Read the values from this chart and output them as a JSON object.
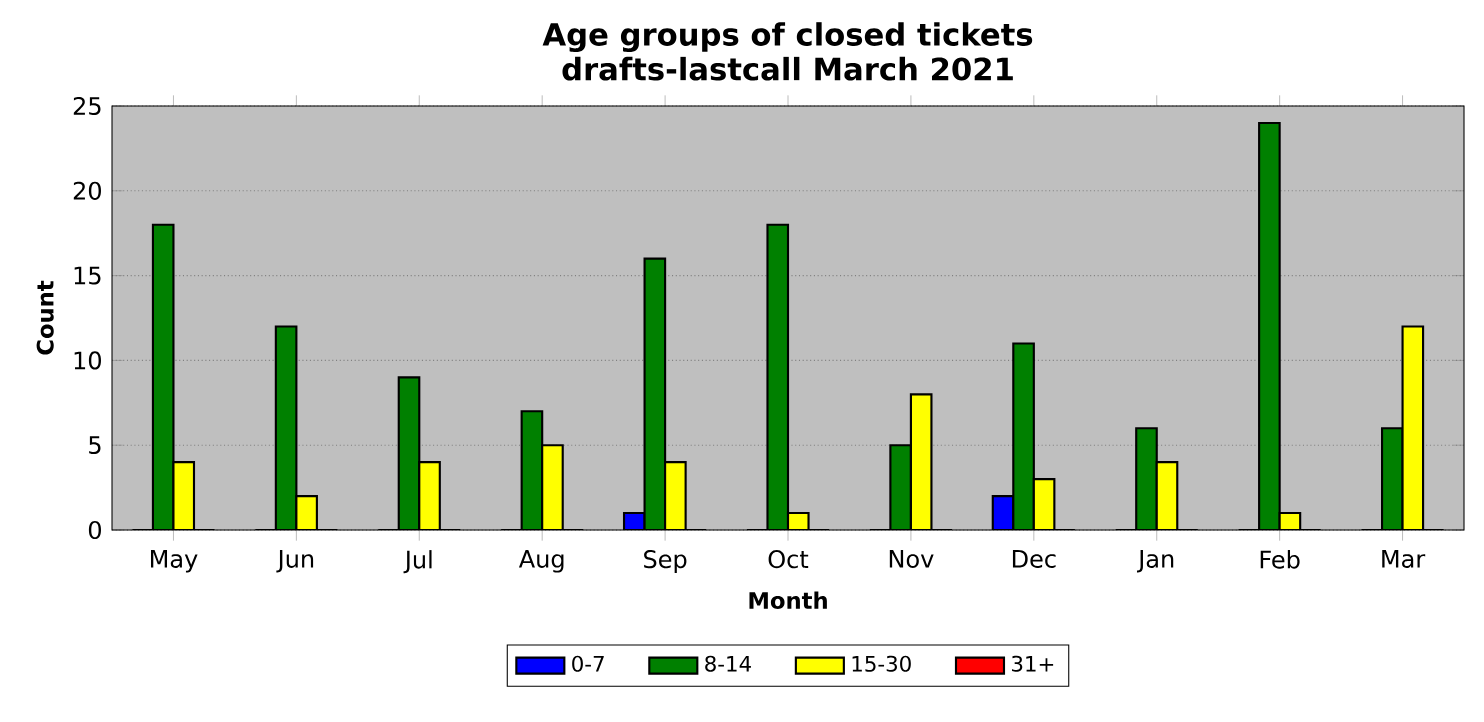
{
  "chart_data": {
    "type": "bar",
    "title": "Age groups of closed tickets\ndrafts-lastcall March 2021",
    "xlabel": "Month",
    "ylabel": "Count",
    "categories": [
      "May",
      "Jun",
      "Jul",
      "Aug",
      "Sep",
      "Oct",
      "Nov",
      "Dec",
      "Jan",
      "Feb",
      "Mar"
    ],
    "series": [
      {
        "name": "0-7",
        "color": "#0000ff",
        "values": [
          0,
          0,
          0,
          0,
          1,
          0,
          0,
          2,
          0,
          0,
          0
        ]
      },
      {
        "name": "8-14",
        "color": "#008000",
        "values": [
          18,
          12,
          9,
          7,
          16,
          18,
          5,
          11,
          6,
          24,
          6
        ]
      },
      {
        "name": "15-30",
        "color": "#ffff00",
        "values": [
          4,
          2,
          4,
          5,
          4,
          1,
          8,
          3,
          4,
          1,
          12
        ]
      },
      {
        "name": "31+",
        "color": "#ff0000",
        "values": [
          0,
          0,
          0,
          0,
          0,
          0,
          0,
          0,
          0,
          0,
          0
        ]
      }
    ],
    "ylim": [
      0,
      25
    ],
    "yticks": [
      0,
      5,
      10,
      15,
      20,
      25
    ],
    "grid": "y",
    "legend": "bottom"
  }
}
